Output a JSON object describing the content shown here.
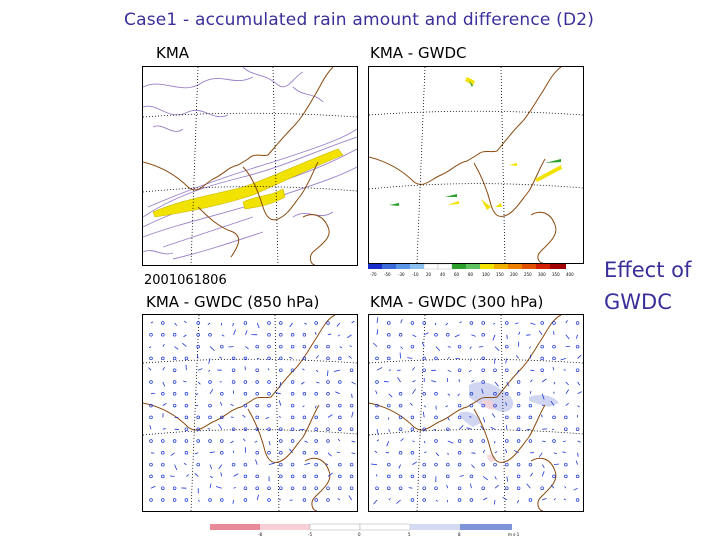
{
  "title": "Case1 - accumulated rain amount and difference (D2)",
  "panels": {
    "top_left": "KMA",
    "top_right": "KMA - GWDC",
    "bottom_left": "KMA - GWDC (850 hPa)",
    "bottom_right": "KMA - GWDC (300 hPa)"
  },
  "datestamp": "2001061806",
  "annotation": {
    "line1": "Effect of",
    "line2": "GWDC"
  },
  "colors": {
    "title": "#3a2f9a",
    "coast": "#8b4a10",
    "rain_contour": "#9a7fc8",
    "rain_fill": "#f2e200",
    "wind_vector": "#1a35d8"
  },
  "colorbar_top_labels": [
    "-70",
    "-50",
    "-30",
    "-10",
    "20",
    "40",
    "60",
    "80",
    "100",
    "150",
    "200",
    "250",
    "300",
    "350",
    "400"
  ],
  "colorbar_bottom_labels": [
    "-8",
    "-5",
    "0",
    "5",
    "8",
    "m s-1"
  ]
}
